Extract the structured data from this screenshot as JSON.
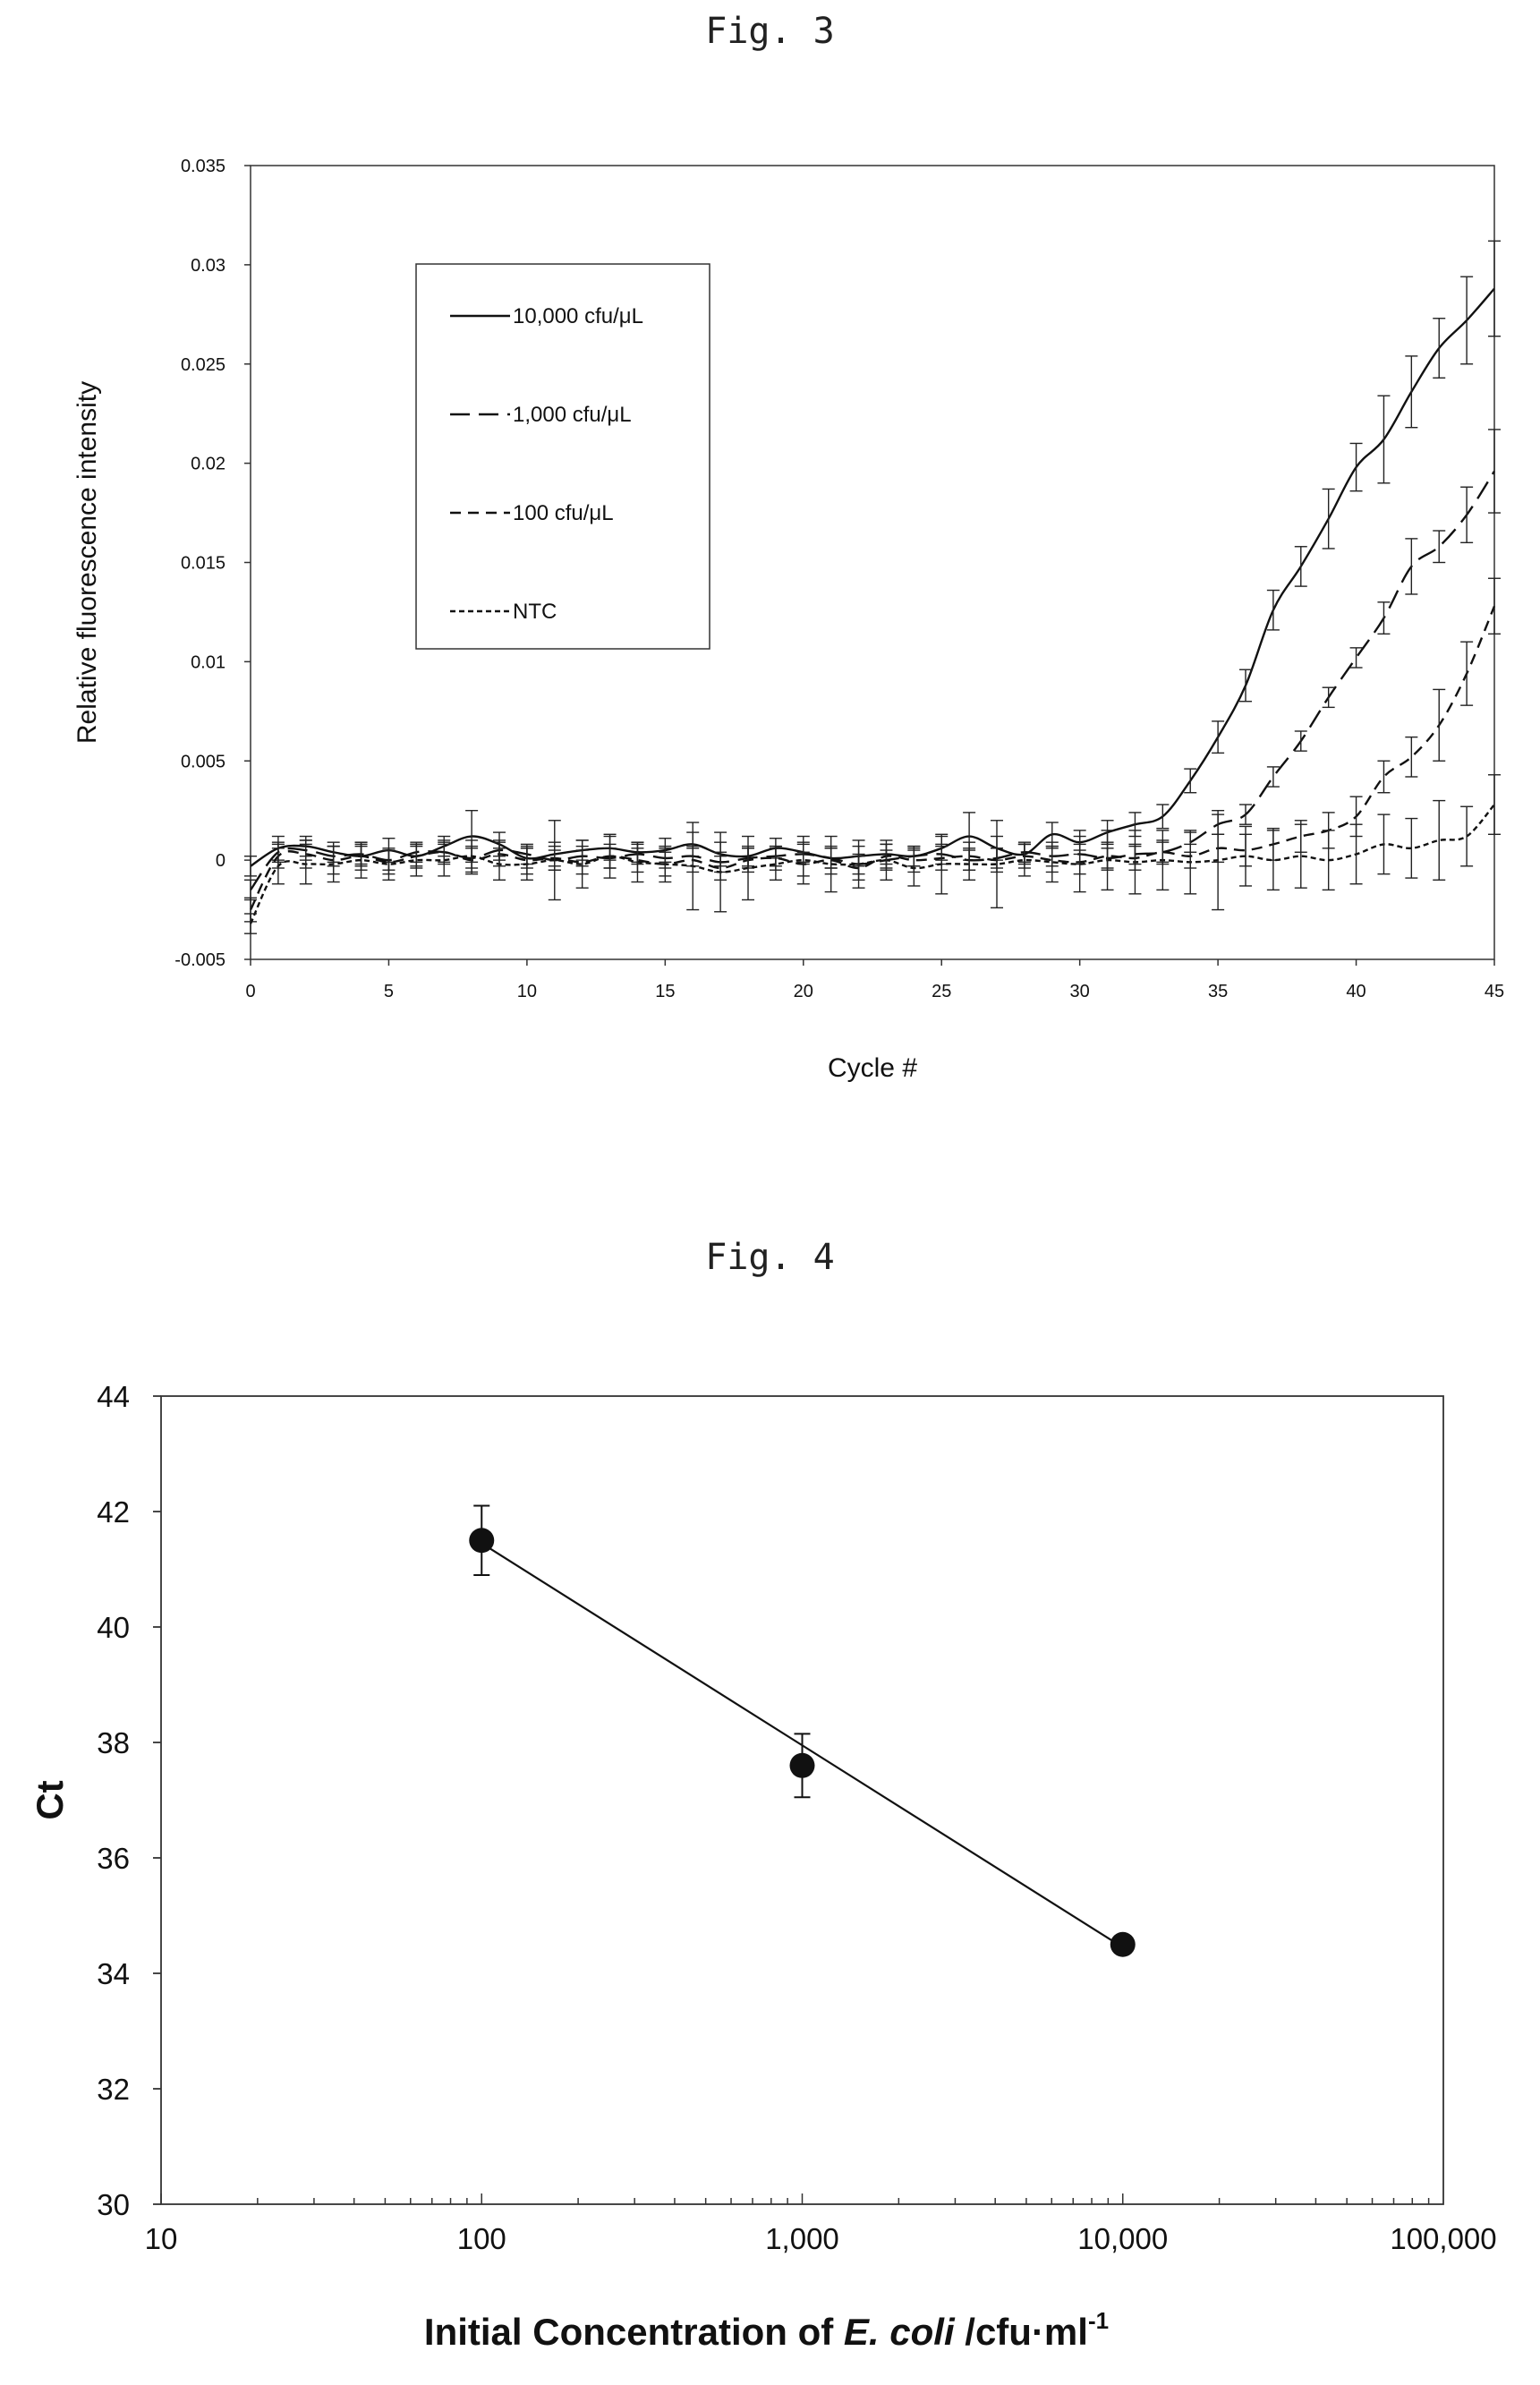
{
  "figures": {
    "fig3_title": "Fig. 3",
    "fig4_title": "Fig. 4"
  },
  "chart_data": [
    {
      "type": "line",
      "xlabel": "Cycle #",
      "ylabel": "Relative fluorescence intensity",
      "xlim": [
        0,
        45
      ],
      "ylim": [
        -0.005,
        0.035
      ],
      "x_ticks": [
        "0",
        "5",
        "10",
        "15",
        "20",
        "25",
        "30",
        "35",
        "40",
        "45"
      ],
      "y_ticks": [
        "-0.005",
        "0",
        "0.005",
        "0.01",
        "0.015",
        "0.02",
        "0.025",
        "0.03",
        "0.035"
      ],
      "legend_position": "top-left",
      "x": [
        0,
        1,
        2,
        3,
        4,
        5,
        6,
        7,
        8,
        9,
        10,
        11,
        12,
        13,
        14,
        15,
        16,
        17,
        18,
        19,
        20,
        21,
        22,
        23,
        24,
        25,
        26,
        27,
        28,
        29,
        30,
        31,
        32,
        33,
        34,
        35,
        36,
        37,
        38,
        39,
        40,
        41,
        42,
        43,
        44,
        45
      ],
      "series": [
        {
          "name": "10,000 cfu/μL",
          "line_style": "solid",
          "values": [
            -0.0003,
            0.0006,
            0.0007,
            0.0004,
            0.0002,
            0.0005,
            0.0002,
            0.0007,
            0.0012,
            0.0008,
            0.0001,
            0.0003,
            0.0005,
            0.0006,
            0.0004,
            0.0005,
            0.0008,
            0.0003,
            0.0002,
            0.0006,
            0.0004,
            0.0001,
            0.0002,
            0.0003,
            0.0002,
            0.0006,
            0.0012,
            0.0006,
            0.0003,
            0.0013,
            0.0009,
            0.0014,
            0.0018,
            0.0022,
            0.004,
            0.0062,
            0.0088,
            0.0126,
            0.0148,
            0.0172,
            0.0198,
            0.0212,
            0.0236,
            0.0258,
            0.0272,
            0.0288
          ],
          "error": [
            0.0005,
            0.0006,
            0.0005,
            0.0005,
            0.0005,
            0.0006,
            0.0005,
            0.0005,
            0.0013,
            0.0006,
            0.0005,
            0.0006,
            0.0005,
            0.0006,
            0.0005,
            0.0006,
            0.0006,
            0.0006,
            0.0005,
            0.0005,
            0.0005,
            0.0005,
            0.0005,
            0.0005,
            0.0005,
            0.0006,
            0.0012,
            0.0006,
            0.0005,
            0.0006,
            0.0006,
            0.0006,
            0.0006,
            0.0006,
            0.0006,
            0.0008,
            0.0008,
            0.001,
            0.001,
            0.0015,
            0.0012,
            0.0022,
            0.0018,
            0.0015,
            0.0022,
            0.0024
          ]
        },
        {
          "name": "1,000 cfu/μL",
          "line_style": "long-dash",
          "values": [
            -0.0015,
            0.0004,
            0.0005,
            0.0002,
            0.0003,
            0.0,
            0.0004,
            0.0004,
            0.0001,
            0.0005,
            0.0003,
            0.0,
            0.0002,
            0.0001,
            0.0003,
            0.0001,
            0.0002,
            -0.0001,
            0.0001,
            0.0002,
            0.0003,
            0.0001,
            -0.0002,
            0.0,
            0.0002,
            0.0003,
            0.0,
            0.0001,
            0.0004,
            0.0002,
            0.0003,
            0.0001,
            0.0003,
            0.0004,
            0.0009,
            0.0018,
            0.0023,
            0.0042,
            0.006,
            0.0082,
            0.0102,
            0.0122,
            0.0148,
            0.0158,
            0.0174,
            0.0196
          ],
          "error": [
            0.0005,
            0.0005,
            0.0005,
            0.0005,
            0.0005,
            0.0005,
            0.0005,
            0.0005,
            0.0005,
            0.0005,
            0.0005,
            0.0005,
            0.0005,
            0.0005,
            0.0005,
            0.0005,
            0.0005,
            0.0005,
            0.0005,
            0.0005,
            0.0005,
            0.0005,
            0.0005,
            0.0005,
            0.0005,
            0.0005,
            0.0005,
            0.0005,
            0.0005,
            0.0005,
            0.0005,
            0.0005,
            0.0005,
            0.0005,
            0.0005,
            0.0005,
            0.0005,
            0.0005,
            0.0005,
            0.0005,
            0.0005,
            0.0008,
            0.0014,
            0.0008,
            0.0014,
            0.0021
          ]
        },
        {
          "name": "100 cfu/μL",
          "line_style": "short-dash",
          "values": [
            -0.0025,
            0.0002,
            0.0003,
            0.0,
            0.0002,
            -0.0001,
            0.0002,
            0.0004,
            0.0,
            0.0003,
            0.0,
            0.0001,
            -0.0001,
            0.0002,
            0.0,
            -0.0002,
            0.0,
            -0.0004,
            0.0,
            0.0001,
            -0.0002,
            0.0,
            -0.0004,
            0.0002,
            0.0,
            0.0001,
            0.0002,
            0.0,
            0.0002,
            0.0,
            -0.0001,
            0.0002,
            0.0001,
            0.0004,
            0.0002,
            0.0006,
            0.0005,
            0.0008,
            0.0012,
            0.0015,
            0.0022,
            0.0042,
            0.0052,
            0.0068,
            0.0094,
            0.0128
          ],
          "error": [
            0.0006,
            0.0006,
            0.0007,
            0.0007,
            0.0007,
            0.0006,
            0.0006,
            0.0006,
            0.0007,
            0.0006,
            0.0007,
            0.0006,
            0.0006,
            0.0006,
            0.0006,
            0.0006,
            0.0006,
            0.0006,
            0.0006,
            0.0006,
            0.0006,
            0.0007,
            0.0006,
            0.0006,
            0.0006,
            0.0006,
            0.0007,
            0.0006,
            0.0006,
            0.0006,
            0.0006,
            0.0007,
            0.0006,
            0.0006,
            0.0006,
            0.0007,
            0.0008,
            0.0008,
            0.0008,
            0.0009,
            0.001,
            0.0008,
            0.001,
            0.0018,
            0.0016,
            0.0014
          ]
        },
        {
          "name": "NTC",
          "line_style": "dotted",
          "values": [
            -0.0032,
            -0.0003,
            -0.0002,
            -0.0002,
            0.0,
            -0.0002,
            0.0,
            0.0,
            0.0002,
            -0.0002,
            -0.0002,
            0.0,
            -0.0002,
            0.0002,
            -0.0001,
            -0.0002,
            -0.0003,
            -0.0006,
            -0.0004,
            -0.0002,
            0.0,
            -0.0002,
            -0.0002,
            0.0,
            -0.0004,
            -0.0002,
            -0.0002,
            -0.0002,
            0.0,
            -0.0001,
            -0.0002,
            0.0,
            -0.0001,
            0.0,
            -0.0001,
            0.0,
            0.0002,
            0.0,
            0.0002,
            0.0,
            0.0003,
            0.0008,
            0.0006,
            0.001,
            0.0012,
            0.0028
          ],
          "error": [
            0.0005,
            0.0009,
            0.001,
            0.0009,
            0.0009,
            0.0008,
            0.0008,
            0.0008,
            0.0008,
            0.0008,
            0.0008,
            0.002,
            0.0012,
            0.0011,
            0.001,
            0.0009,
            0.0022,
            0.002,
            0.0016,
            0.0008,
            0.0012,
            0.0014,
            0.0012,
            0.001,
            0.0009,
            0.0015,
            0.0008,
            0.0022,
            0.0008,
            0.001,
            0.0014,
            0.0015,
            0.0016,
            0.0015,
            0.0016,
            0.0025,
            0.0015,
            0.0015,
            0.0016,
            0.0015,
            0.0015,
            0.0015,
            0.0015,
            0.002,
            0.0015,
            0.0015
          ]
        }
      ]
    },
    {
      "type": "scatter",
      "xlabel_prefix": "Initial Concentration of ",
      "xlabel_italic": "E. coli",
      "xlabel_suffix": " /cfu·ml",
      "xlabel_superscript": "-1",
      "ylabel": "Ct",
      "x_scale": "log",
      "xlim": [
        10,
        100000
      ],
      "ylim": [
        30,
        44
      ],
      "x_ticks": [
        "10",
        "100",
        "1,000",
        "10,000",
        "100,000"
      ],
      "y_ticks": [
        "30",
        "32",
        "34",
        "36",
        "38",
        "40",
        "42",
        "44"
      ],
      "x": [
        100,
        1000,
        10000
      ],
      "y": [
        41.5,
        37.6,
        34.5
      ],
      "error": [
        0.6,
        0.55,
        0.15
      ],
      "trendline": {
        "x": [
          100,
          10000
        ],
        "y": [
          41.45,
          34.45
        ]
      }
    }
  ]
}
